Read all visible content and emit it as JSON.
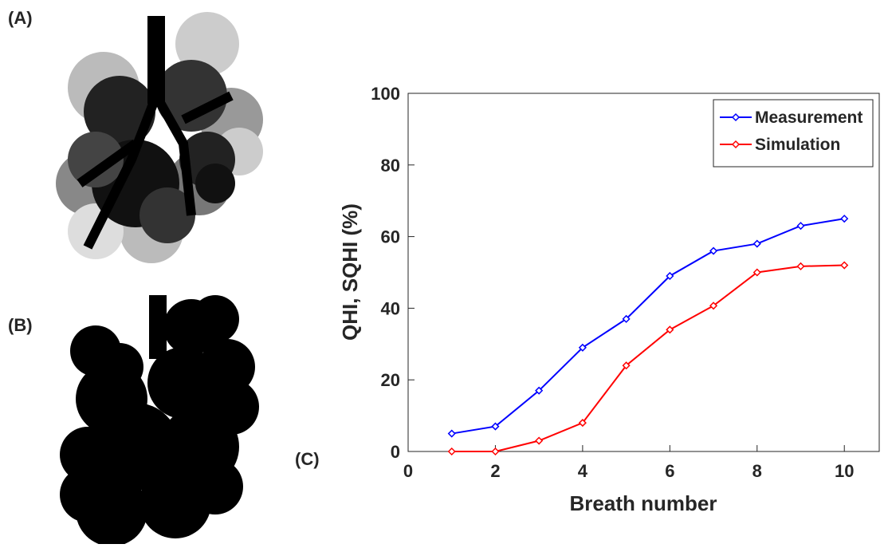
{
  "panel_labels": [
    "(A)",
    "(B)",
    "(C)"
  ],
  "chart_data": {
    "type": "line",
    "xlabel": "Breath number",
    "ylabel": "QHI, SQHI (%)",
    "x": [
      1,
      2,
      3,
      4,
      5,
      6,
      7,
      8,
      9,
      10
    ],
    "series": [
      {
        "name": "Measurement",
        "color": "#0000ff",
        "values": [
          5,
          7,
          17,
          29,
          37,
          49,
          56,
          58,
          63,
          65
        ]
      },
      {
        "name": "Simulation",
        "color": "#ff0000",
        "values": [
          0,
          0,
          3,
          8,
          24,
          34,
          40.7,
          50,
          51.7,
          52
        ]
      }
    ],
    "xlim": [
      0,
      10.8
    ],
    "ylim": [
      0,
      100
    ],
    "xticks": [
      0,
      2,
      4,
      6,
      8,
      10
    ],
    "yticks": [
      0,
      20,
      40,
      60,
      80,
      100
    ],
    "legend": "top-right"
  }
}
